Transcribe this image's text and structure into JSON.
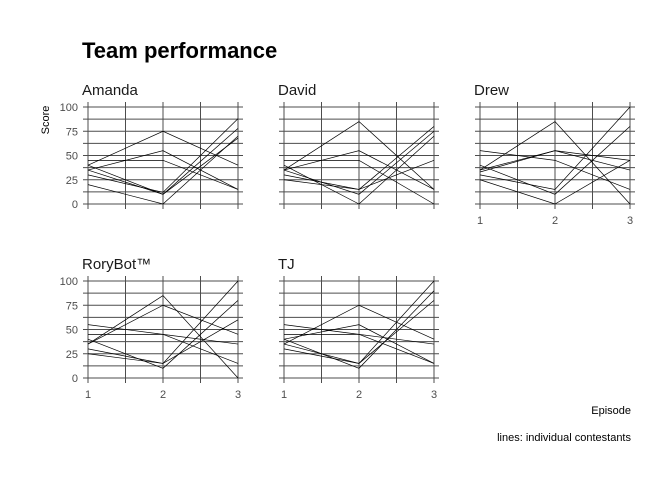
{
  "chart_data": {
    "type": "line",
    "title": "Team performance",
    "xlabel": "Episode",
    "ylabel": "Score",
    "caption": "lines: individual contestants",
    "x": [
      1,
      2,
      3
    ],
    "xlim": [
      1,
      3
    ],
    "ylim": [
      0,
      100
    ],
    "yticks": [
      0,
      25,
      50,
      75,
      100
    ],
    "xticks": [
      1,
      2,
      3
    ],
    "grid": true,
    "legend": "none",
    "panels": [
      {
        "name": "Amanda",
        "series": [
          {
            "values": [
              40,
              75,
              40
            ]
          },
          {
            "values": [
              35,
              55,
              15
            ]
          },
          {
            "values": [
              45,
              45,
              15
            ]
          },
          {
            "values": [
              30,
              12,
              88
            ]
          },
          {
            "values": [
              35,
              10,
              78
            ]
          },
          {
            "values": [
              40,
              10,
              68
            ]
          },
          {
            "values": [
              20,
              0,
              70
            ]
          }
        ]
      },
      {
        "name": "David",
        "series": [
          {
            "values": [
              35,
              85,
              15
            ]
          },
          {
            "values": [
              35,
              55,
              15
            ]
          },
          {
            "values": [
              45,
              45,
              0
            ]
          },
          {
            "values": [
              30,
              15,
              80
            ]
          },
          {
            "values": [
              35,
              10,
              75
            ]
          },
          {
            "values": [
              40,
              0,
              70
            ]
          },
          {
            "values": [
              25,
              15,
              45
            ]
          }
        ]
      },
      {
        "name": "Drew",
        "series": [
          {
            "values": [
              35,
              85,
              0
            ]
          },
          {
            "values": [
              55,
              45,
              15
            ]
          },
          {
            "values": [
              35,
              55,
              45
            ]
          },
          {
            "values": [
              30,
              15,
              100
            ]
          },
          {
            "values": [
              40,
              10,
              80
            ]
          },
          {
            "values": [
              25,
              0,
              45
            ]
          },
          {
            "values": [
              33,
              55,
              35
            ]
          }
        ]
      },
      {
        "name": "RoryBot™",
        "series": [
          {
            "values": [
              35,
              85,
              0
            ]
          },
          {
            "values": [
              55,
              45,
              35
            ]
          },
          {
            "values": [
              35,
              75,
              45
            ]
          },
          {
            "values": [
              30,
              15,
              100
            ]
          },
          {
            "values": [
              40,
              10,
              80
            ]
          },
          {
            "values": [
              25,
              15,
              60
            ]
          },
          {
            "values": [
              45,
              45,
              15
            ]
          }
        ]
      },
      {
        "name": "TJ",
        "series": [
          {
            "values": [
              35,
              75,
              40
            ]
          },
          {
            "values": [
              55,
              45,
              15
            ]
          },
          {
            "values": [
              40,
              55,
              15
            ]
          },
          {
            "values": [
              30,
              15,
              100
            ]
          },
          {
            "values": [
              40,
              10,
              90
            ]
          },
          {
            "values": [
              35,
              15,
              80
            ]
          },
          {
            "values": [
              45,
              45,
              35
            ]
          }
        ]
      }
    ]
  }
}
